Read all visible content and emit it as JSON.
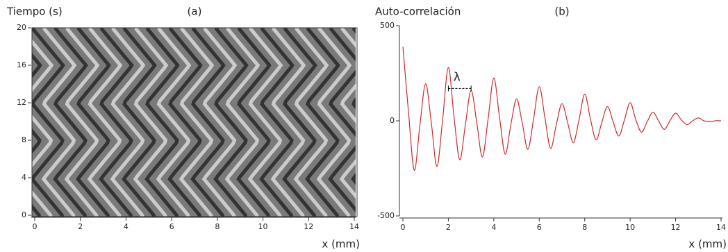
{
  "chart_data": [
    {
      "type": "image",
      "title": "(a)",
      "y_label": "Tiempo (s)",
      "x_label": "x (mm)",
      "xlim": [
        0,
        14
      ],
      "ylim": [
        0,
        20
      ],
      "xticks": [
        0,
        2,
        4,
        6,
        8,
        10,
        12,
        14
      ],
      "yticks": [
        0,
        4,
        8,
        12,
        16,
        20
      ]
    },
    {
      "type": "line",
      "title": "(b)",
      "y_label": "Auto-correlación",
      "x_label": "x (mm)",
      "annotation": "λ",
      "xlim": [
        0,
        14
      ],
      "ylim": [
        -500,
        500
      ],
      "xticks": [
        0,
        2,
        4,
        6,
        8,
        10,
        12,
        14
      ],
      "yticks": [
        -500,
        0,
        500
      ],
      "color": "#d42a2a",
      "x": [
        0,
        0.25,
        0.5,
        0.75,
        1,
        1.25,
        1.5,
        1.75,
        2,
        2.25,
        2.5,
        2.75,
        3,
        3.25,
        3.5,
        3.75,
        4,
        4.25,
        4.5,
        4.75,
        5,
        5.25,
        5.5,
        5.75,
        6,
        6.25,
        6.5,
        6.75,
        7,
        7.25,
        7.5,
        7.75,
        8,
        8.25,
        8.5,
        8.75,
        9,
        9.25,
        9.5,
        9.75,
        10,
        10.25,
        10.5,
        10.75,
        11,
        11.25,
        11.5,
        11.75,
        12,
        12.25,
        12.5,
        12.75,
        13,
        13.25,
        13.5,
        13.75,
        14
      ],
      "values": [
        390,
        40,
        -260,
        -20,
        195,
        -10,
        -240,
        10,
        280,
        20,
        -205,
        -20,
        160,
        -10,
        -190,
        10,
        225,
        20,
        -175,
        -20,
        115,
        -10,
        -150,
        10,
        180,
        15,
        -145,
        -20,
        90,
        -10,
        -115,
        5,
        140,
        10,
        -100,
        -10,
        75,
        -5,
        -80,
        5,
        95,
        5,
        -60,
        -5,
        45,
        0,
        -45,
        0,
        40,
        5,
        -20,
        0,
        15,
        0,
        -5,
        0,
        0
      ]
    }
  ]
}
